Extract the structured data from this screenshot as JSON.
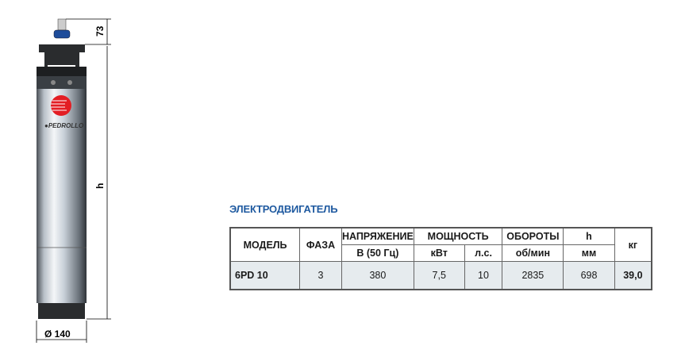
{
  "drawing": {
    "brand": "PEDROLLO",
    "dim_top": "73",
    "dim_height": "h",
    "dim_diameter": "Ø 140"
  },
  "title": "ЭЛЕКТРОДВИГАТЕЛЬ",
  "table": {
    "headers": {
      "model": "МОДЕЛЬ",
      "phase": "ФАЗА",
      "voltage": "НАПРЯЖЕНИЕ",
      "voltage_unit": "В (50 Гц)",
      "power": "МОЩНОСТЬ",
      "kw": "кВт",
      "hp": "л.с.",
      "speed": "ОБОРОТЫ",
      "speed_unit": "об/мин",
      "h": "h",
      "h_unit": "мм",
      "weight": "кг"
    },
    "rows": [
      {
        "model": "6PD 10",
        "phase": "3",
        "voltage": "380",
        "kw": "7,5",
        "hp": "10",
        "speed": "2835",
        "h": "698",
        "weight": "39,0"
      }
    ]
  },
  "colors": {
    "title": "#1f5aa0",
    "logo_red": "#e31e24"
  }
}
